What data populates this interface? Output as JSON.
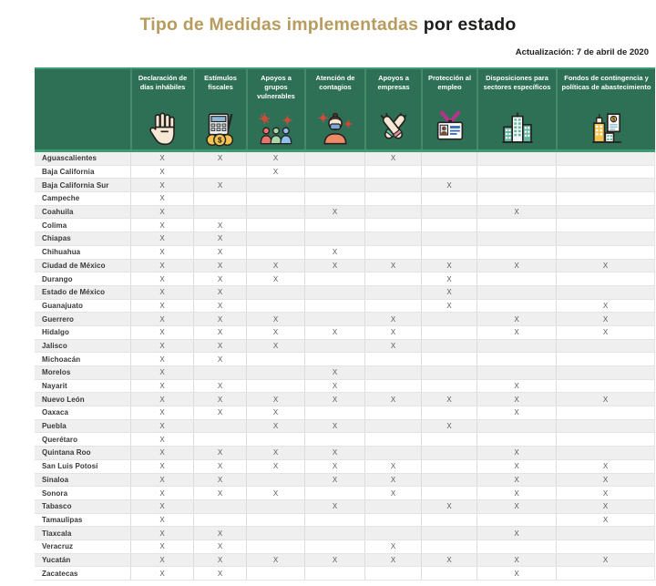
{
  "title": {
    "main": "Tipo de Medidas implementadas",
    "suffix": " por estado"
  },
  "updated": "Actualización: 7 de abril de 2020",
  "colors": {
    "header_green": "#2d7056",
    "accent_line_green": "#3c9b72",
    "title_gold": "#b89b5e",
    "title_dark": "#1d1d1b",
    "row_stripe": "#efefef"
  },
  "table": {
    "mark": "X",
    "columns": [
      {
        "label": "Declaración de días inhábiles",
        "icon": "hand-stop-icon"
      },
      {
        "label": "Estímulos fiscales",
        "icon": "calculator-coins-icon"
      },
      {
        "label": "Apoyos a grupos vulnerables",
        "icon": "vulnerable-groups-icon"
      },
      {
        "label": "Atención de contagios",
        "icon": "masked-person-icon"
      },
      {
        "label": "Apoyos a empresas",
        "icon": "handshake-icon"
      },
      {
        "label": "Protección al empleo",
        "icon": "id-badge-icon"
      },
      {
        "label": "Disposiciones para sectores específicos",
        "icon": "buildings-icon"
      },
      {
        "label": "Fondos de contingencia y políticas de abastecimiento",
        "icon": "contingency-funds-icon"
      }
    ],
    "rows": [
      {
        "state": "Aguascalientes",
        "marks": [
          1,
          1,
          1,
          0,
          1,
          0,
          0,
          0
        ]
      },
      {
        "state": "Baja California",
        "marks": [
          1,
          0,
          1,
          0,
          0,
          0,
          0,
          0
        ]
      },
      {
        "state": "Baja California Sur",
        "marks": [
          1,
          1,
          0,
          0,
          0,
          1,
          0,
          0
        ]
      },
      {
        "state": "Campeche",
        "marks": [
          1,
          0,
          0,
          0,
          0,
          0,
          0,
          0
        ]
      },
      {
        "state": "Coahuila",
        "marks": [
          1,
          0,
          0,
          1,
          0,
          0,
          1,
          0
        ]
      },
      {
        "state": "Colima",
        "marks": [
          1,
          1,
          0,
          0,
          0,
          0,
          0,
          0
        ]
      },
      {
        "state": "Chiapas",
        "marks": [
          1,
          1,
          0,
          0,
          0,
          0,
          0,
          0
        ]
      },
      {
        "state": "Chihuahua",
        "marks": [
          1,
          1,
          0,
          1,
          0,
          0,
          0,
          0
        ]
      },
      {
        "state": "Ciudad de México",
        "marks": [
          1,
          1,
          1,
          1,
          1,
          1,
          1,
          1
        ]
      },
      {
        "state": "Durango",
        "marks": [
          1,
          1,
          1,
          0,
          0,
          1,
          0,
          0
        ]
      },
      {
        "state": "Estado de México",
        "marks": [
          1,
          1,
          0,
          0,
          0,
          1,
          0,
          0
        ]
      },
      {
        "state": "Guanajuato",
        "marks": [
          1,
          1,
          0,
          0,
          0,
          1,
          0,
          1
        ]
      },
      {
        "state": "Guerrero",
        "marks": [
          1,
          1,
          1,
          0,
          1,
          0,
          1,
          1
        ]
      },
      {
        "state": "Hidalgo",
        "marks": [
          1,
          1,
          1,
          1,
          1,
          0,
          1,
          1
        ]
      },
      {
        "state": "Jalisco",
        "marks": [
          1,
          1,
          1,
          0,
          1,
          0,
          0,
          0
        ]
      },
      {
        "state": "Michoacán",
        "marks": [
          1,
          1,
          0,
          0,
          0,
          0,
          0,
          0
        ]
      },
      {
        "state": "Morelos",
        "marks": [
          1,
          0,
          0,
          1,
          0,
          0,
          0,
          0
        ]
      },
      {
        "state": "Nayarit",
        "marks": [
          1,
          1,
          0,
          1,
          0,
          0,
          1,
          0
        ]
      },
      {
        "state": "Nuevo León",
        "marks": [
          1,
          1,
          1,
          1,
          1,
          1,
          1,
          1
        ]
      },
      {
        "state": "Oaxaca",
        "marks": [
          1,
          1,
          1,
          0,
          0,
          0,
          1,
          0
        ]
      },
      {
        "state": "Puebla",
        "marks": [
          1,
          0,
          1,
          1,
          0,
          1,
          0,
          0
        ]
      },
      {
        "state": "Querétaro",
        "marks": [
          1,
          0,
          0,
          0,
          0,
          0,
          0,
          0
        ]
      },
      {
        "state": "Quintana Roo",
        "marks": [
          1,
          1,
          1,
          1,
          0,
          0,
          1,
          0
        ]
      },
      {
        "state": "San Luis Potosí",
        "marks": [
          1,
          1,
          1,
          1,
          1,
          0,
          1,
          1
        ]
      },
      {
        "state": "Sinaloa",
        "marks": [
          1,
          1,
          0,
          1,
          1,
          0,
          1,
          1
        ]
      },
      {
        "state": "Sonora",
        "marks": [
          1,
          1,
          1,
          0,
          1,
          0,
          1,
          1
        ]
      },
      {
        "state": "Tabasco",
        "marks": [
          1,
          0,
          0,
          1,
          0,
          1,
          1,
          1
        ]
      },
      {
        "state": "Tamaulipas",
        "marks": [
          1,
          0,
          0,
          0,
          0,
          0,
          0,
          1
        ]
      },
      {
        "state": "Tlaxcala",
        "marks": [
          1,
          1,
          0,
          0,
          0,
          0,
          1,
          0
        ]
      },
      {
        "state": "Veracruz",
        "marks": [
          1,
          1,
          0,
          0,
          1,
          0,
          0,
          0
        ]
      },
      {
        "state": "Yucatán",
        "marks": [
          1,
          1,
          1,
          1,
          1,
          1,
          1,
          1
        ]
      },
      {
        "state": "Zacatecas",
        "marks": [
          1,
          1,
          0,
          0,
          0,
          0,
          1,
          0
        ]
      }
    ]
  },
  "chart_data": {
    "type": "table",
    "title": "Tipo de Medidas implementadas por estado",
    "subtitle": "Actualización: 7 de abril de 2020",
    "columns": [
      "Declaración de días inhábiles",
      "Estímulos fiscales",
      "Apoyos a grupos vulnerables",
      "Atención de contagios",
      "Apoyos a empresas",
      "Protección al empleo",
      "Disposiciones para sectores específicos",
      "Fondos de contingencia y políticas de abastecimiento"
    ],
    "rows": [
      {
        "state": "Aguascalientes",
        "measures": [
          1,
          1,
          1,
          0,
          1,
          0,
          0,
          0
        ]
      },
      {
        "state": "Baja California",
        "measures": [
          1,
          0,
          1,
          0,
          0,
          0,
          0,
          0
        ]
      },
      {
        "state": "Baja California Sur",
        "measures": [
          1,
          1,
          0,
          0,
          0,
          1,
          0,
          0
        ]
      },
      {
        "state": "Campeche",
        "measures": [
          1,
          0,
          0,
          0,
          0,
          0,
          0,
          0
        ]
      },
      {
        "state": "Coahuila",
        "measures": [
          1,
          0,
          0,
          1,
          0,
          0,
          1,
          0
        ]
      },
      {
        "state": "Colima",
        "measures": [
          1,
          1,
          0,
          0,
          0,
          0,
          0,
          0
        ]
      },
      {
        "state": "Chiapas",
        "measures": [
          1,
          1,
          0,
          0,
          0,
          0,
          0,
          0
        ]
      },
      {
        "state": "Chihuahua",
        "measures": [
          1,
          1,
          0,
          1,
          0,
          0,
          0,
          0
        ]
      },
      {
        "state": "Ciudad de México",
        "measures": [
          1,
          1,
          1,
          1,
          1,
          1,
          1,
          1
        ]
      },
      {
        "state": "Durango",
        "measures": [
          1,
          1,
          1,
          0,
          0,
          1,
          0,
          0
        ]
      },
      {
        "state": "Estado de México",
        "measures": [
          1,
          1,
          0,
          0,
          0,
          1,
          0,
          0
        ]
      },
      {
        "state": "Guanajuato",
        "measures": [
          1,
          1,
          0,
          0,
          0,
          1,
          0,
          1
        ]
      },
      {
        "state": "Guerrero",
        "measures": [
          1,
          1,
          1,
          0,
          1,
          0,
          1,
          1
        ]
      },
      {
        "state": "Hidalgo",
        "measures": [
          1,
          1,
          1,
          1,
          1,
          0,
          1,
          1
        ]
      },
      {
        "state": "Jalisco",
        "measures": [
          1,
          1,
          1,
          0,
          1,
          0,
          0,
          0
        ]
      },
      {
        "state": "Michoacán",
        "measures": [
          1,
          1,
          0,
          0,
          0,
          0,
          0,
          0
        ]
      },
      {
        "state": "Morelos",
        "measures": [
          1,
          0,
          0,
          1,
          0,
          0,
          0,
          0
        ]
      },
      {
        "state": "Nayarit",
        "measures": [
          1,
          1,
          0,
          1,
          0,
          0,
          1,
          0
        ]
      },
      {
        "state": "Nuevo León",
        "measures": [
          1,
          1,
          1,
          1,
          1,
          1,
          1,
          1
        ]
      },
      {
        "state": "Oaxaca",
        "measures": [
          1,
          1,
          1,
          0,
          0,
          0,
          1,
          0
        ]
      },
      {
        "state": "Puebla",
        "measures": [
          1,
          0,
          1,
          1,
          0,
          1,
          0,
          0
        ]
      },
      {
        "state": "Querétaro",
        "measures": [
          1,
          0,
          0,
          0,
          0,
          0,
          0,
          0
        ]
      },
      {
        "state": "Quintana Roo",
        "measures": [
          1,
          1,
          1,
          1,
          0,
          0,
          1,
          0
        ]
      },
      {
        "state": "San Luis Potosí",
        "measures": [
          1,
          1,
          1,
          1,
          1,
          0,
          1,
          1
        ]
      },
      {
        "state": "Sinaloa",
        "measures": [
          1,
          1,
          0,
          1,
          1,
          0,
          1,
          1
        ]
      },
      {
        "state": "Sonora",
        "measures": [
          1,
          1,
          1,
          0,
          1,
          0,
          1,
          1
        ]
      },
      {
        "state": "Tabasco",
        "measures": [
          1,
          0,
          0,
          1,
          0,
          1,
          1,
          1
        ]
      },
      {
        "state": "Tamaulipas",
        "measures": [
          1,
          0,
          0,
          0,
          0,
          0,
          0,
          1
        ]
      },
      {
        "state": "Tlaxcala",
        "measures": [
          1,
          1,
          0,
          0,
          0,
          0,
          1,
          0
        ]
      },
      {
        "state": "Veracruz",
        "measures": [
          1,
          1,
          0,
          0,
          1,
          0,
          0,
          0
        ]
      },
      {
        "state": "Yucatán",
        "measures": [
          1,
          1,
          1,
          1,
          1,
          1,
          1,
          1
        ]
      },
      {
        "state": "Zacatecas",
        "measures": [
          1,
          1,
          0,
          0,
          0,
          0,
          1,
          0
        ]
      }
    ]
  }
}
